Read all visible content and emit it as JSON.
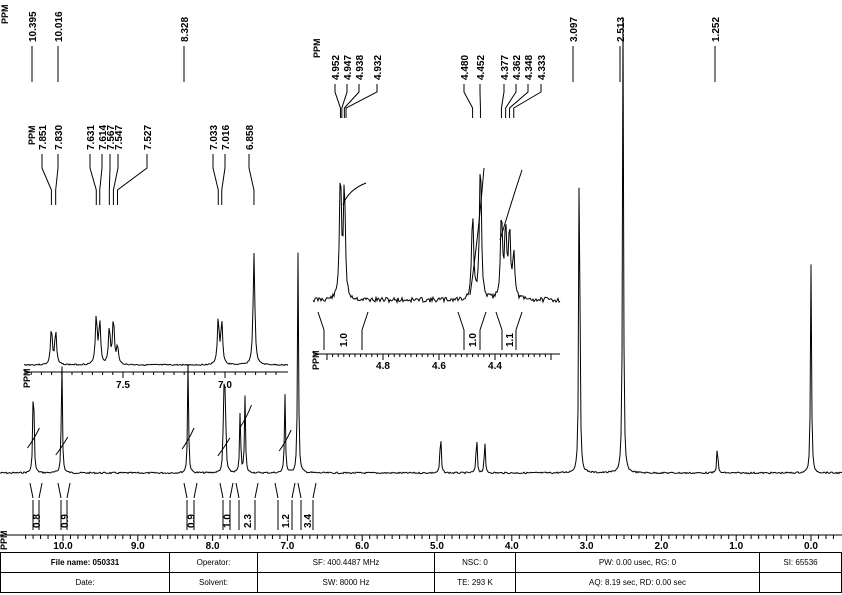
{
  "chart_data": {
    "type": "line",
    "ppm_label": "PPM",
    "peak_labels_main": [
      "10.395",
      "10.016",
      "8.328",
      "3.097",
      "2.513",
      "1.252"
    ],
    "main_axis": {
      "xlim": [
        10.6,
        -0.4
      ],
      "tick_labels": [
        "10.0",
        "9.0",
        "8.0",
        "7.0",
        "6.0",
        "5.0",
        "4.0",
        "3.0",
        "2.0",
        "1.0",
        "0.0"
      ]
    },
    "main_integrals": [
      "0.8",
      "0.9",
      "0.9",
      "1.0",
      "2.3",
      "1.2",
      "3.4"
    ],
    "peaks_main": [
      {
        "x": 10.395,
        "height": 0.3
      },
      {
        "x": 10.016,
        "height": 0.31
      },
      {
        "x": 8.328,
        "height": 0.29
      },
      {
        "x": 7.851,
        "height": 0.23
      },
      {
        "x": 7.83,
        "height": 0.23
      },
      {
        "x": 7.631,
        "height": 0.17
      },
      {
        "x": 7.567,
        "height": 0.2
      },
      {
        "x": 7.033,
        "height": 0.21
      },
      {
        "x": 6.858,
        "height": 0.58
      },
      {
        "x": 4.952,
        "height": 0.12
      },
      {
        "x": 4.47,
        "height": 0.11
      },
      {
        "x": 4.362,
        "height": 0.09
      },
      {
        "x": 3.097,
        "height": 1.0
      },
      {
        "x": 2.513,
        "height": 1.2
      },
      {
        "x": 1.252,
        "height": 0.08
      },
      {
        "x": 0.0,
        "height": 0.55
      }
    ],
    "inset1": {
      "peak_labels": [
        "7.851",
        "7.830",
        "7.631",
        "7.614",
        "7.567",
        "7.547",
        "7.527",
        "7.033",
        "7.016",
        "6.858"
      ],
      "tick_labels": [
        "7.5",
        "7.0"
      ],
      "xlim": [
        7.97,
        6.73
      ]
    },
    "inset2": {
      "peak_labels": [
        "4.952",
        "4.947",
        "4.938",
        "4.932",
        "4.480",
        "4.452",
        "4.377",
        "4.362",
        "4.348",
        "4.333"
      ],
      "tick_labels": [
        "4.8",
        "4.6",
        "4.4"
      ],
      "xlim": [
        5.02,
        4.18
      ],
      "integrals": [
        "1.0",
        "1.0",
        "1.1"
      ]
    }
  },
  "info_table": {
    "file_name": "File name: 050331",
    "operator": "Operator:",
    "sf": "SF: 400.4487 MHz",
    "nsc": "NSC: 0",
    "pw": "PW: 0.00 usec, RG: 0",
    "si": "SI: 65536",
    "date": "Date:",
    "solvent": "Solvent:",
    "sw": "SW: 8000 Hz",
    "te": "TE: 293 K",
    "aq": "AQ: 8.19 sec, RD: 0.00 sec"
  }
}
